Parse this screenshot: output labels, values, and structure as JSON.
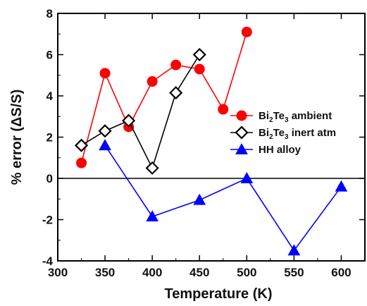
{
  "chart_data": {
    "type": "line",
    "xlabel": "Temperature (K)",
    "ylabel": "% error (ΔS/S)",
    "xlim": [
      300,
      625
    ],
    "ylim": [
      -4,
      8
    ],
    "xticks": [
      300,
      350,
      400,
      450,
      500,
      550,
      600
    ],
    "yticks": [
      -4,
      -2,
      0,
      2,
      4,
      6,
      8
    ],
    "zero_line": true,
    "legend_position": "right",
    "series": [
      {
        "name_parts": [
          "Bi",
          "2",
          "Te",
          "3",
          " ambient"
        ],
        "color": "#ff0000",
        "marker": "circle",
        "x": [
          325,
          350,
          375,
          400,
          425,
          450,
          475,
          500
        ],
        "y": [
          0.75,
          5.1,
          2.5,
          4.7,
          5.5,
          5.3,
          3.35,
          7.1
        ]
      },
      {
        "name_parts": [
          "Bi",
          "2",
          "Te",
          "3",
          " inert atm"
        ],
        "color": "#000000",
        "marker": "diamond",
        "x": [
          325,
          350,
          375,
          400,
          425,
          450
        ],
        "y": [
          1.6,
          2.3,
          2.8,
          0.5,
          4.15,
          6.0
        ]
      },
      {
        "name_parts": [
          "HH alloy"
        ],
        "color": "#0000ff",
        "marker": "triangle",
        "x": [
          350,
          400,
          450,
          500,
          550,
          600
        ],
        "y": [
          1.6,
          -1.85,
          -1.05,
          0.0,
          -3.5,
          -0.4
        ]
      }
    ]
  }
}
